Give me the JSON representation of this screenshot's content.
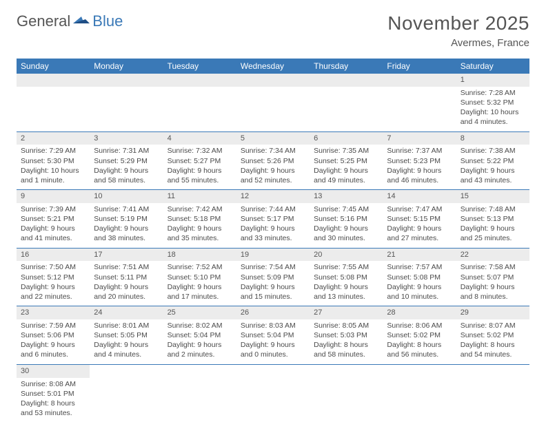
{
  "brand": {
    "part1": "General",
    "part2": "Blue"
  },
  "title": "November 2025",
  "location": "Avermes, France",
  "weekday_header_bg": "#3a79b7",
  "weekday_header_fg": "#ffffff",
  "daynum_bg": "#ececec",
  "cell_border": "#3a79b7",
  "weekdays": [
    "Sunday",
    "Monday",
    "Tuesday",
    "Wednesday",
    "Thursday",
    "Friday",
    "Saturday"
  ],
  "weeks": [
    [
      null,
      null,
      null,
      null,
      null,
      null,
      {
        "n": "1",
        "sunrise": "7:28 AM",
        "sunset": "5:32 PM",
        "daylight": "10 hours and 4 minutes."
      }
    ],
    [
      {
        "n": "2",
        "sunrise": "7:29 AM",
        "sunset": "5:30 PM",
        "daylight": "10 hours and 1 minute."
      },
      {
        "n": "3",
        "sunrise": "7:31 AM",
        "sunset": "5:29 PM",
        "daylight": "9 hours and 58 minutes."
      },
      {
        "n": "4",
        "sunrise": "7:32 AM",
        "sunset": "5:27 PM",
        "daylight": "9 hours and 55 minutes."
      },
      {
        "n": "5",
        "sunrise": "7:34 AM",
        "sunset": "5:26 PM",
        "daylight": "9 hours and 52 minutes."
      },
      {
        "n": "6",
        "sunrise": "7:35 AM",
        "sunset": "5:25 PM",
        "daylight": "9 hours and 49 minutes."
      },
      {
        "n": "7",
        "sunrise": "7:37 AM",
        "sunset": "5:23 PM",
        "daylight": "9 hours and 46 minutes."
      },
      {
        "n": "8",
        "sunrise": "7:38 AM",
        "sunset": "5:22 PM",
        "daylight": "9 hours and 43 minutes."
      }
    ],
    [
      {
        "n": "9",
        "sunrise": "7:39 AM",
        "sunset": "5:21 PM",
        "daylight": "9 hours and 41 minutes."
      },
      {
        "n": "10",
        "sunrise": "7:41 AM",
        "sunset": "5:19 PM",
        "daylight": "9 hours and 38 minutes."
      },
      {
        "n": "11",
        "sunrise": "7:42 AM",
        "sunset": "5:18 PM",
        "daylight": "9 hours and 35 minutes."
      },
      {
        "n": "12",
        "sunrise": "7:44 AM",
        "sunset": "5:17 PM",
        "daylight": "9 hours and 33 minutes."
      },
      {
        "n": "13",
        "sunrise": "7:45 AM",
        "sunset": "5:16 PM",
        "daylight": "9 hours and 30 minutes."
      },
      {
        "n": "14",
        "sunrise": "7:47 AM",
        "sunset": "5:15 PM",
        "daylight": "9 hours and 27 minutes."
      },
      {
        "n": "15",
        "sunrise": "7:48 AM",
        "sunset": "5:13 PM",
        "daylight": "9 hours and 25 minutes."
      }
    ],
    [
      {
        "n": "16",
        "sunrise": "7:50 AM",
        "sunset": "5:12 PM",
        "daylight": "9 hours and 22 minutes."
      },
      {
        "n": "17",
        "sunrise": "7:51 AM",
        "sunset": "5:11 PM",
        "daylight": "9 hours and 20 minutes."
      },
      {
        "n": "18",
        "sunrise": "7:52 AM",
        "sunset": "5:10 PM",
        "daylight": "9 hours and 17 minutes."
      },
      {
        "n": "19",
        "sunrise": "7:54 AM",
        "sunset": "5:09 PM",
        "daylight": "9 hours and 15 minutes."
      },
      {
        "n": "20",
        "sunrise": "7:55 AM",
        "sunset": "5:08 PM",
        "daylight": "9 hours and 13 minutes."
      },
      {
        "n": "21",
        "sunrise": "7:57 AM",
        "sunset": "5:08 PM",
        "daylight": "9 hours and 10 minutes."
      },
      {
        "n": "22",
        "sunrise": "7:58 AM",
        "sunset": "5:07 PM",
        "daylight": "9 hours and 8 minutes."
      }
    ],
    [
      {
        "n": "23",
        "sunrise": "7:59 AM",
        "sunset": "5:06 PM",
        "daylight": "9 hours and 6 minutes."
      },
      {
        "n": "24",
        "sunrise": "8:01 AM",
        "sunset": "5:05 PM",
        "daylight": "9 hours and 4 minutes."
      },
      {
        "n": "25",
        "sunrise": "8:02 AM",
        "sunset": "5:04 PM",
        "daylight": "9 hours and 2 minutes."
      },
      {
        "n": "26",
        "sunrise": "8:03 AM",
        "sunset": "5:04 PM",
        "daylight": "9 hours and 0 minutes."
      },
      {
        "n": "27",
        "sunrise": "8:05 AM",
        "sunset": "5:03 PM",
        "daylight": "8 hours and 58 minutes."
      },
      {
        "n": "28",
        "sunrise": "8:06 AM",
        "sunset": "5:02 PM",
        "daylight": "8 hours and 56 minutes."
      },
      {
        "n": "29",
        "sunrise": "8:07 AM",
        "sunset": "5:02 PM",
        "daylight": "8 hours and 54 minutes."
      }
    ],
    [
      {
        "n": "30",
        "sunrise": "8:08 AM",
        "sunset": "5:01 PM",
        "daylight": "8 hours and 53 minutes."
      },
      null,
      null,
      null,
      null,
      null,
      null
    ]
  ]
}
